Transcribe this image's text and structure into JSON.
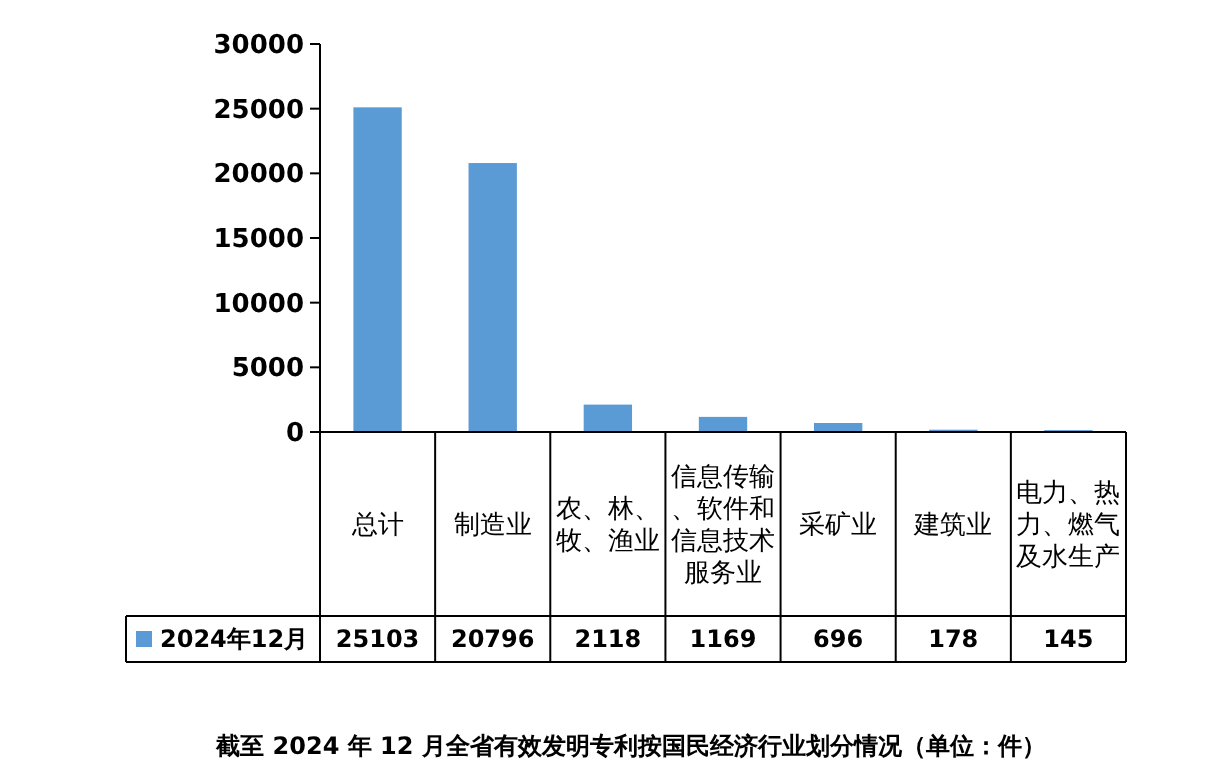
{
  "chart_data": {
    "type": "bar",
    "title": "截至 2024 年 12 月全省有效发明专利按国民经济行业划分情况（单位：件）",
    "categories": [
      "总计",
      "制造业",
      "农、林、牧、渔业",
      "信息传输、软件和信息技术服务业",
      "采矿业",
      "建筑业",
      "电力、热力、燃气及水生产"
    ],
    "series": [
      {
        "name": "2024年12月",
        "color": "#5b9bd5",
        "values": [
          25103,
          20796,
          2118,
          1169,
          696,
          178,
          145
        ]
      }
    ],
    "ylim": [
      0,
      30000
    ],
    "yticks": [
      0,
      5000,
      10000,
      15000,
      20000,
      25000,
      30000
    ],
    "grid": false,
    "legend": "bottom",
    "data_labels": true
  }
}
